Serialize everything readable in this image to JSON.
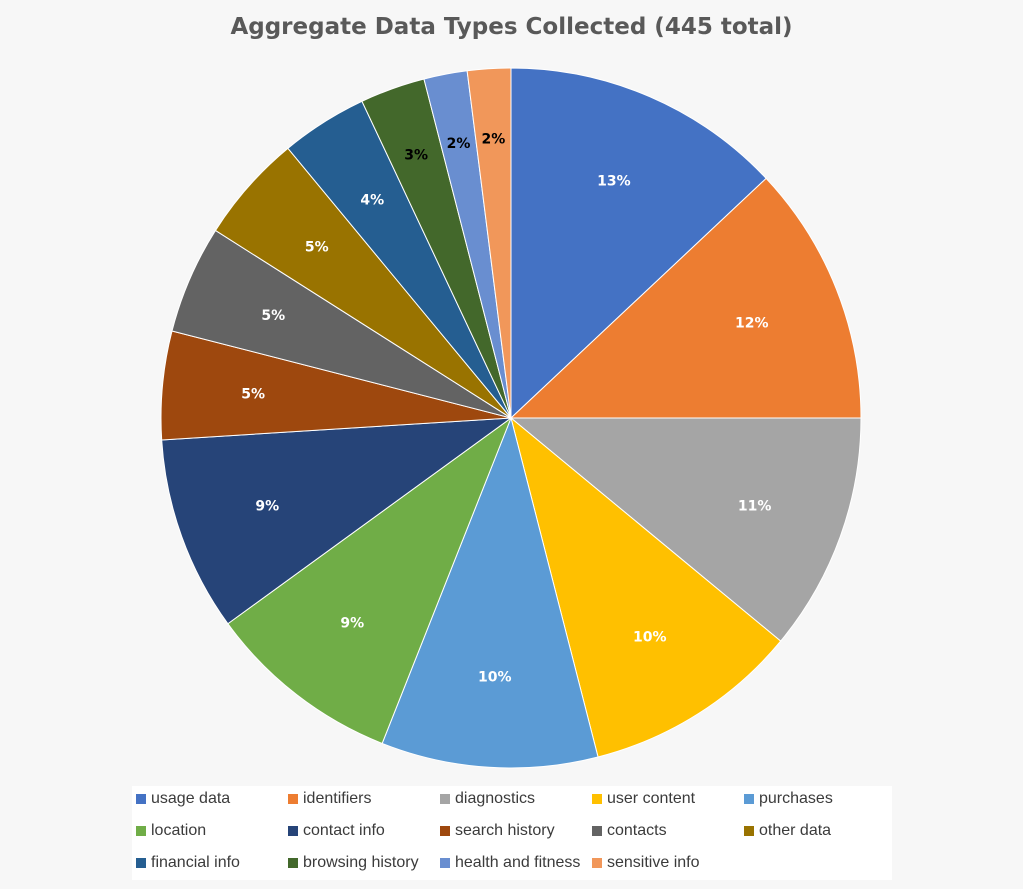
{
  "chart_data": {
    "type": "pie",
    "title": "Aggregate Data Types Collected (445 total)",
    "start_angle_deg": 0,
    "direction": "clockwise",
    "legend_position": "bottom",
    "series": [
      {
        "name": "usage data",
        "value": 13,
        "label": "13%",
        "color": "#4472c4",
        "label_color": "#ffffff"
      },
      {
        "name": "identifiers",
        "value": 12,
        "label": "12%",
        "color": "#ed7d31",
        "label_color": "#ffffff"
      },
      {
        "name": "diagnostics",
        "value": 11,
        "label": "11%",
        "color": "#a5a5a5",
        "label_color": "#ffffff"
      },
      {
        "name": "user content",
        "value": 10,
        "label": "10%",
        "color": "#ffc000",
        "label_color": "#ffffff"
      },
      {
        "name": "purchases",
        "value": 10,
        "label": "10%",
        "color": "#5b9bd5",
        "label_color": "#ffffff"
      },
      {
        "name": "location",
        "value": 9,
        "label": "9%",
        "color": "#70ad47",
        "label_color": "#ffffff"
      },
      {
        "name": "contact info",
        "value": 9,
        "label": "9%",
        "color": "#264478",
        "label_color": "#ffffff"
      },
      {
        "name": "search history",
        "value": 5,
        "label": "5%",
        "color": "#9e480e",
        "label_color": "#ffffff"
      },
      {
        "name": "contacts",
        "value": 5,
        "label": "5%",
        "color": "#636363",
        "label_color": "#ffffff"
      },
      {
        "name": "other data",
        "value": 5,
        "label": "5%",
        "color": "#997300",
        "label_color": "#ffffff"
      },
      {
        "name": "financial info",
        "value": 4,
        "label": "4%",
        "color": "#255e91",
        "label_color": "#ffffff"
      },
      {
        "name": "browsing history",
        "value": 3,
        "label": "3%",
        "color": "#43682b",
        "label_color": "#000000"
      },
      {
        "name": "health and fitness",
        "value": 2,
        "label": "2%",
        "color": "#698ed0",
        "label_color": "#000000"
      },
      {
        "name": "sensitive info",
        "value": 2,
        "label": "2%",
        "color": "#f1975a",
        "label_color": "#000000"
      }
    ]
  }
}
